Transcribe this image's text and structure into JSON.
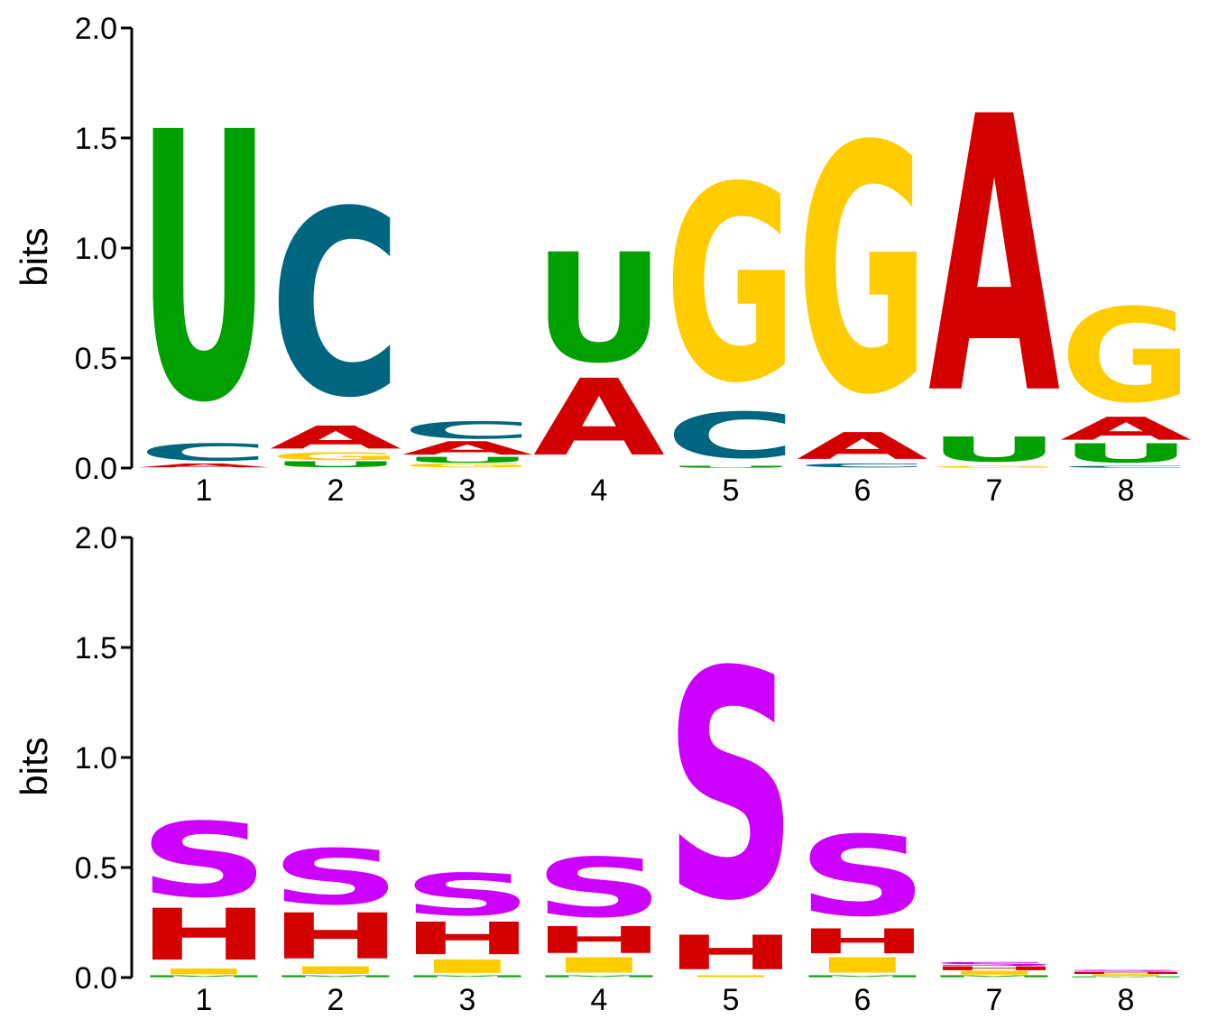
{
  "chart_data": [
    {
      "type": "sequence-logo",
      "ylabel": "bits",
      "ylim": [
        0,
        2.0
      ],
      "yticks": [
        "0.0",
        "0.5",
        "1.0",
        "1.5",
        "2.0"
      ],
      "positions": [
        "1",
        "2",
        "3",
        "4",
        "5",
        "6",
        "7",
        "8"
      ],
      "colors": {
        "A": "#d40000",
        "C": "#006680",
        "G": "#ffcc00",
        "U": "#00a000"
      },
      "stacks": [
        [
          {
            "l": "A",
            "h": 0.02
          },
          {
            "l": "C",
            "h": 0.09
          },
          {
            "l": "U",
            "h": 1.4
          }
        ],
        [
          {
            "l": "U",
            "h": 0.03
          },
          {
            "l": "G",
            "h": 0.04
          },
          {
            "l": "A",
            "h": 0.12
          },
          {
            "l": "C",
            "h": 0.97
          }
        ],
        [
          {
            "l": "G",
            "h": 0.02
          },
          {
            "l": "U",
            "h": 0.03
          },
          {
            "l": "A",
            "h": 0.07
          },
          {
            "l": "C",
            "h": 0.09
          }
        ],
        [
          {
            "l": "A",
            "h": 0.4
          },
          {
            "l": "U",
            "h": 0.57
          }
        ],
        [
          {
            "l": "U",
            "h": 0.01
          },
          {
            "l": "C",
            "h": 0.24
          },
          {
            "l": "G",
            "h": 1.02
          }
        ],
        [
          {
            "l": "C",
            "h": 0.02
          },
          {
            "l": "A",
            "h": 0.14
          },
          {
            "l": "G",
            "h": 1.29
          }
        ],
        [
          {
            "l": "G",
            "h": 0.01
          },
          {
            "l": "U",
            "h": 0.13
          },
          {
            "l": "A",
            "h": 1.44
          }
        ],
        [
          {
            "l": "C",
            "h": 0.01
          },
          {
            "l": "U",
            "h": 0.1
          },
          {
            "l": "A",
            "h": 0.12
          },
          {
            "l": "G",
            "h": 0.49
          }
        ]
      ]
    },
    {
      "type": "sequence-logo",
      "ylabel": "bits",
      "ylim": [
        0,
        2.0
      ],
      "yticks": [
        "0.0",
        "0.5",
        "1.0",
        "1.5",
        "2.0"
      ],
      "positions": [
        "1",
        "2",
        "3",
        "4",
        "5",
        "6",
        "7",
        "8"
      ],
      "colors": {
        "S": "#cc00ff",
        "H": "#d40000",
        "I": "#ffcc00",
        "M": "#00a000"
      },
      "stacks": [
        [
          {
            "l": "M",
            "h": 0.01
          },
          {
            "l": "I",
            "h": 0.03
          },
          {
            "l": "H",
            "h": 0.27
          },
          {
            "l": "S",
            "h": 0.39
          }
        ],
        [
          {
            "l": "M",
            "h": 0.01
          },
          {
            "l": "I",
            "h": 0.04
          },
          {
            "l": "H",
            "h": 0.24
          },
          {
            "l": "S",
            "h": 0.29
          }
        ],
        [
          {
            "l": "M",
            "h": 0.01
          },
          {
            "l": "I",
            "h": 0.07
          },
          {
            "l": "H",
            "h": 0.17
          },
          {
            "l": "S",
            "h": 0.22
          }
        ],
        [
          {
            "l": "M",
            "h": 0.01
          },
          {
            "l": "I",
            "h": 0.08
          },
          {
            "l": "H",
            "h": 0.14
          },
          {
            "l": "S",
            "h": 0.31
          }
        ],
        [
          {
            "l": "I",
            "h": 0.01
          },
          {
            "l": "H",
            "h": 0.18
          },
          {
            "l": "S",
            "h": 1.19
          }
        ],
        [
          {
            "l": "M",
            "h": 0.01
          },
          {
            "l": "I",
            "h": 0.08
          },
          {
            "l": "H",
            "h": 0.13
          },
          {
            "l": "S",
            "h": 0.42
          }
        ],
        [
          {
            "l": "M",
            "h": 0.01
          },
          {
            "l": "I",
            "h": 0.02
          },
          {
            "l": "H",
            "h": 0.02
          },
          {
            "l": "S",
            "h": 0.02
          }
        ],
        [
          {
            "l": "M",
            "h": 0.005
          },
          {
            "l": "I",
            "h": 0.01
          },
          {
            "l": "H",
            "h": 0.01
          },
          {
            "l": "S",
            "h": 0.01
          }
        ]
      ]
    }
  ]
}
